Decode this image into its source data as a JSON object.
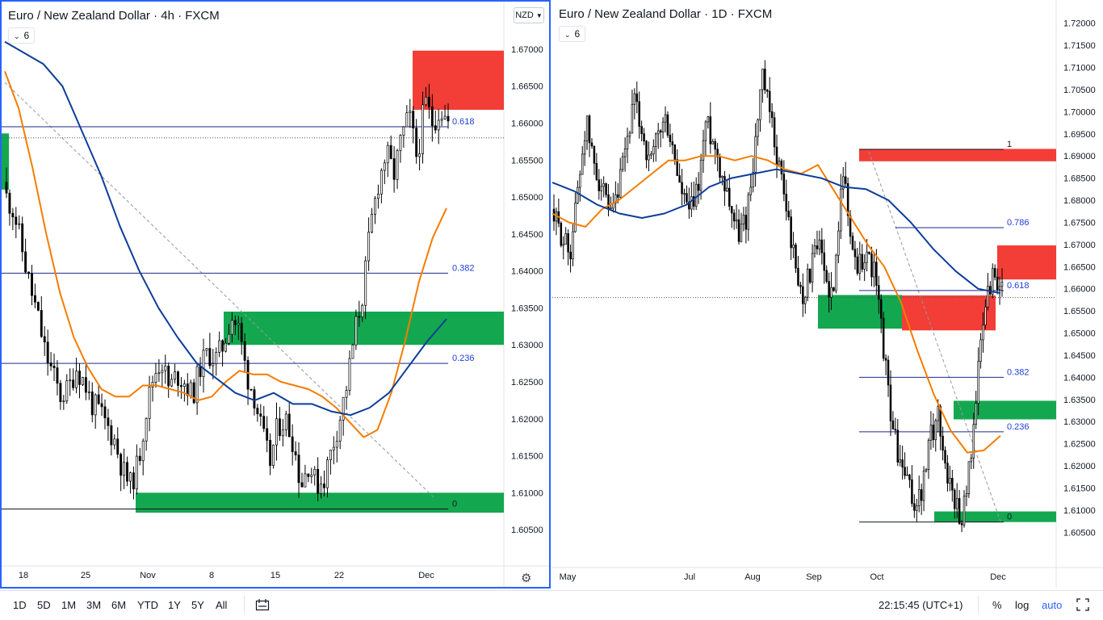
{
  "left": {
    "title": "Euro / New Zealand Dollar · 4h · FXCM",
    "indicator_count": "6",
    "currency": "NZD",
    "y_ticks": [
      "1.67000",
      "1.66500",
      "1.66000",
      "1.65500",
      "1.65000",
      "1.64500",
      "1.64000",
      "1.63500",
      "1.63000",
      "1.62500",
      "1.62000",
      "1.61500",
      "1.61000",
      "1.60500"
    ],
    "x_ticks": [
      "18",
      "25",
      "Nov",
      "8",
      "15",
      "22",
      "Dec"
    ],
    "fib_labels": [
      "0.618",
      "0.382",
      "0.236",
      "0"
    ]
  },
  "right": {
    "title": "Euro / New Zealand Dollar · 1D · FXCM",
    "indicator_count": "6",
    "y_ticks": [
      "1.72000",
      "1.71500",
      "1.71000",
      "1.70500",
      "1.70000",
      "1.69500",
      "1.69000",
      "1.68500",
      "1.68000",
      "1.67500",
      "1.67000",
      "1.66500",
      "1.66000",
      "1.65500",
      "1.65000",
      "1.64500",
      "1.64000",
      "1.63500",
      "1.63000",
      "1.62500",
      "1.62000",
      "1.61500",
      "1.61000",
      "1.60500"
    ],
    "x_ticks": [
      "May",
      "Jul",
      "Aug",
      "Sep",
      "Oct",
      "Dec"
    ],
    "fib_labels": [
      "1",
      "0.786",
      "0.618",
      "0.382",
      "0.236",
      "0"
    ]
  },
  "bottom": {
    "ranges": [
      "1D",
      "5D",
      "1M",
      "3M",
      "6M",
      "YTD",
      "1Y",
      "5Y",
      "All"
    ],
    "time": "22:15:45 (UTC+1)",
    "percent": "%",
    "log": "log",
    "auto": "auto"
  },
  "colors": {
    "up": "#ffffff",
    "down": "#000000",
    "ma_fast": "#f57c00",
    "ma_slow": "#0d3d99",
    "zone_green": "#13a850",
    "zone_red": "#f23e36",
    "accent": "#2962ff",
    "fib_text": "#1e3fd6"
  },
  "chart_data": [
    {
      "type": "candlestick",
      "instrument": "Euro / New Zealand Dollar",
      "timeframe": "4h",
      "ylim": [
        1.6025,
        1.6725
      ],
      "x_categories": [
        "18",
        "25",
        "Nov",
        "8",
        "15",
        "22",
        "Dec"
      ],
      "close_path": [
        1.65,
        1.648,
        1.643,
        1.638,
        1.634,
        1.629,
        1.626,
        1.623,
        1.624,
        1.627,
        1.625,
        1.622,
        1.621,
        1.619,
        1.617,
        1.613,
        1.611,
        1.614,
        1.621,
        1.626,
        1.628,
        1.624,
        1.626,
        1.625,
        1.623,
        1.627,
        1.629,
        1.628,
        1.63,
        1.634,
        1.632,
        1.626,
        1.623,
        1.618,
        1.614,
        1.619,
        1.62,
        1.617,
        1.611,
        1.614,
        1.611,
        1.612,
        1.616,
        1.62,
        1.625,
        1.632,
        1.637,
        1.646,
        1.652,
        1.656,
        1.653,
        1.658,
        1.661,
        1.655,
        1.663,
        1.66,
        1.662,
        1.66
      ],
      "ma_fast": [
        1.667,
        1.662,
        1.654,
        1.645,
        1.637,
        1.631,
        1.627,
        1.624,
        1.623,
        1.623,
        1.6245,
        1.6245,
        1.624,
        1.6235,
        1.6225,
        1.623,
        1.625,
        1.6265,
        1.626,
        1.626,
        1.625,
        1.6245,
        1.624,
        1.623,
        1.6215,
        1.6195,
        1.6175,
        1.6185,
        1.6235,
        1.6305,
        1.6385,
        1.6445,
        1.6485
      ],
      "ma_slow": [
        1.671,
        1.6695,
        1.668,
        1.665,
        1.659,
        1.653,
        1.646,
        1.64,
        1.635,
        1.631,
        1.6275,
        1.6255,
        1.6235,
        1.6225,
        1.6235,
        1.622,
        1.622,
        1.621,
        1.6205,
        1.6215,
        1.6235,
        1.627,
        1.6305,
        1.6335
      ],
      "fib_levels": {
        "0.618": 1.6595,
        "0.382": 1.6397,
        "0.236": 1.6275,
        "0": 1.6078
      },
      "zones": [
        {
          "color": "red",
          "from": 1.6618,
          "to": 1.6698
        },
        {
          "color": "green",
          "from": 1.63,
          "to": 1.6345
        },
        {
          "color": "green",
          "from": 1.6073,
          "to": 1.61
        },
        {
          "color": "green",
          "from": 1.651,
          "to": 1.6586
        }
      ],
      "last_price": 1.658
    },
    {
      "type": "candlestick",
      "instrument": "Euro / New Zealand Dollar",
      "timeframe": "1D",
      "ylim": [
        1.6025,
        1.7225
      ],
      "x_categories": [
        "May",
        "Jul",
        "Aug",
        "Sep",
        "Oct",
        "Dec"
      ],
      "close_path": [
        1.676,
        1.672,
        1.668,
        1.683,
        1.698,
        1.688,
        1.683,
        1.675,
        1.681,
        1.692,
        1.702,
        1.696,
        1.687,
        1.695,
        1.698,
        1.69,
        1.681,
        1.677,
        1.683,
        1.698,
        1.693,
        1.686,
        1.68,
        1.672,
        1.676,
        1.69,
        1.708,
        1.699,
        1.689,
        1.679,
        1.667,
        1.658,
        1.664,
        1.67,
        1.662,
        1.658,
        1.69,
        1.672,
        1.665,
        1.668,
        1.664,
        1.65,
        1.633,
        1.622,
        1.617,
        1.611,
        1.614,
        1.626,
        1.632,
        1.619,
        1.613,
        1.608,
        1.621,
        1.641,
        1.658,
        1.664,
        1.659
      ],
      "ma_fast": [
        1.677,
        1.675,
        1.674,
        1.678,
        1.68,
        1.683,
        1.686,
        1.689,
        1.689,
        1.69,
        1.69,
        1.689,
        1.69,
        1.689,
        1.687,
        1.686,
        1.688,
        1.682,
        1.676,
        1.67,
        1.665,
        1.657,
        1.646,
        1.636,
        1.628,
        1.623,
        1.6235,
        1.6268
      ],
      "ma_slow": [
        1.684,
        1.682,
        1.679,
        1.677,
        1.676,
        1.677,
        1.679,
        1.683,
        1.685,
        1.686,
        1.687,
        1.686,
        1.685,
        1.683,
        1.6825,
        1.68,
        1.675,
        1.669,
        1.664,
        1.66,
        1.659
      ],
      "fib_levels": {
        "1": 1.6915,
        "0.786": 1.6738,
        "0.618": 1.6596,
        "0.382": 1.64,
        "0.236": 1.6277,
        "0": 1.6073
      },
      "zones": [
        {
          "color": "red",
          "from": 1.6888,
          "to": 1.6916
        },
        {
          "color": "red",
          "from": 1.6621,
          "to": 1.6698
        },
        {
          "color": "red",
          "from": 1.6506,
          "to": 1.6585
        },
        {
          "color": "green",
          "from": 1.651,
          "to": 1.6586
        },
        {
          "color": "green",
          "from": 1.6305,
          "to": 1.6347
        },
        {
          "color": "green",
          "from": 1.6073,
          "to": 1.6097
        }
      ],
      "last_price": 1.658
    }
  ]
}
